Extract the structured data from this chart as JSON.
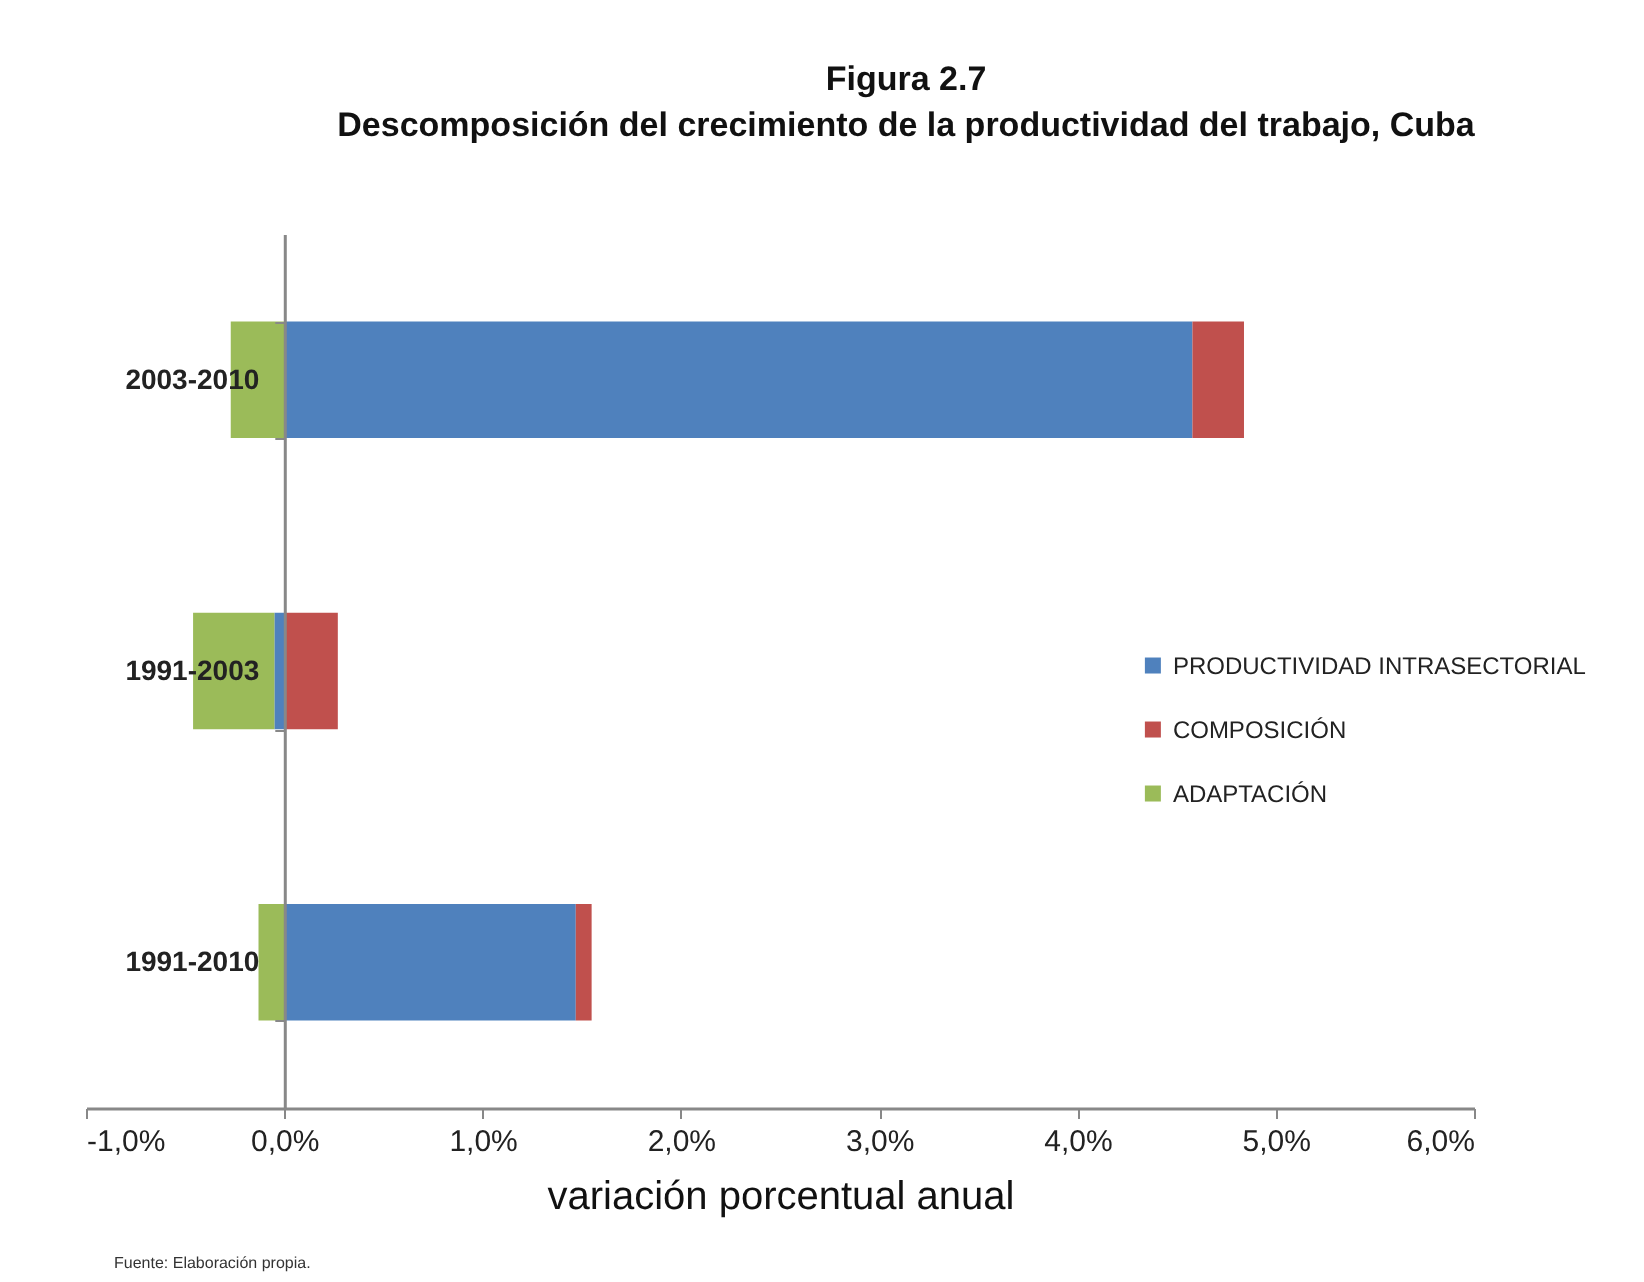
{
  "chart_data": {
    "type": "bar",
    "orientation": "horizontal",
    "stacked": true,
    "title": "Figura 2.7",
    "subtitle": "Descomposición del crecimiento de la productividad del trabajo, Cuba",
    "xlabel": "variación porcentual anual",
    "categories": [
      "2003-2010",
      "1991-2003",
      "1991-2010"
    ],
    "series": [
      {
        "name": "PRODUCTIVIDAD INTRASECTORIAL",
        "color": "#4f81bd",
        "values": [
          4.58,
          -0.05,
          1.47
        ]
      },
      {
        "name": "COMPOSICIÓN",
        "color": "#c0504d",
        "values": [
          0.26,
          0.27,
          0.08
        ]
      },
      {
        "name": "ADAPTACIÓN",
        "color": "#9bbb59",
        "values": [
          -0.27,
          -0.41,
          -0.13
        ]
      }
    ],
    "xlim": [
      -1,
      6
    ],
    "xticks": [
      {
        "value": -1,
        "label": "-1,0%"
      },
      {
        "value": 0,
        "label": "0,0%"
      },
      {
        "value": 1,
        "label": "1,0%"
      },
      {
        "value": 2,
        "label": "2,0%"
      },
      {
        "value": 3,
        "label": "3,0%"
      },
      {
        "value": 4,
        "label": "4,0%"
      },
      {
        "value": 5,
        "label": "5,0%"
      },
      {
        "value": 6,
        "label": "6,0%"
      }
    ],
    "grid": false,
    "legend": "right",
    "annotations": [
      "Fuente: Elaboración propia."
    ]
  }
}
